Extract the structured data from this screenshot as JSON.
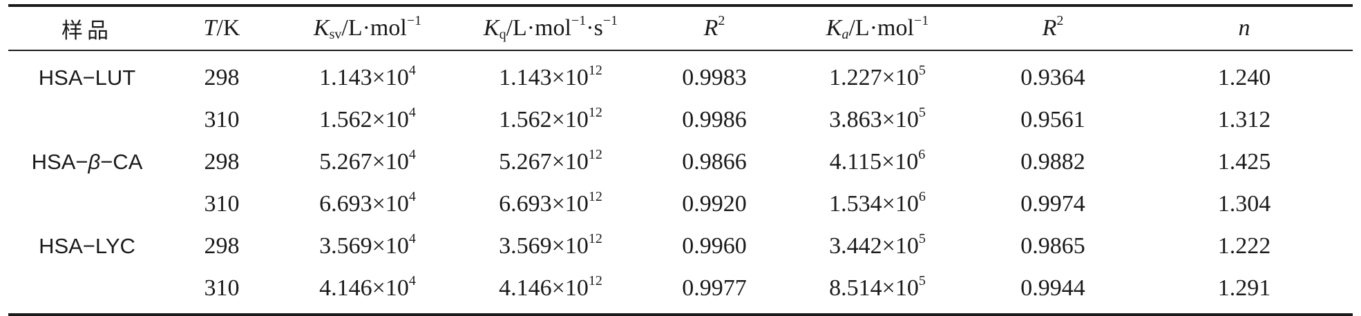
{
  "header": {
    "sample": "样品",
    "t_var": "T",
    "t_unit": "/K",
    "ksv_var": "K",
    "ksv_sub": "sv",
    "ksv_unit": "/L·mol",
    "ksv_exp": "−1",
    "kq_var": "K",
    "kq_sub": "q",
    "kq_unit1": "/L·mol",
    "kq_exp1": "−1",
    "kq_unit2": "·s",
    "kq_exp2": "−1",
    "r2a_var": "R",
    "r2a_exp": "2",
    "ka_var": "K",
    "ka_sub": "a",
    "ka_unit": "/L·mol",
    "ka_exp": "−1",
    "r2b_var": "R",
    "r2b_exp": "2",
    "n_var": "n"
  },
  "rows": [
    {
      "sample": "HSA−LUT",
      "sample_pre": "",
      "sample_it": "",
      "sample_post": "",
      "T": "298",
      "ksv_m": "1.143×10",
      "ksv_e": "4",
      "kq_m": "1.143×10",
      "kq_e": "12",
      "r2a": "0.9983",
      "ka_m": "1.227×10",
      "ka_e": "5",
      "r2b": "0.9364",
      "n": "1.240"
    },
    {
      "sample": "",
      "sample_pre": "",
      "sample_it": "",
      "sample_post": "",
      "T": "310",
      "ksv_m": "1.562×10",
      "ksv_e": "4",
      "kq_m": "1.562×10",
      "kq_e": "12",
      "r2a": "0.9986",
      "ka_m": "3.863×10",
      "ka_e": "5",
      "r2b": "0.9561",
      "n": "1.312"
    },
    {
      "sample": "",
      "sample_pre": "HSA−",
      "sample_it": "β",
      "sample_post": "−CA",
      "T": "298",
      "ksv_m": "5.267×10",
      "ksv_e": "4",
      "kq_m": "5.267×10",
      "kq_e": "12",
      "r2a": "0.9866",
      "ka_m": "4.115×10",
      "ka_e": "6",
      "r2b": "0.9882",
      "n": "1.425"
    },
    {
      "sample": "",
      "sample_pre": "",
      "sample_it": "",
      "sample_post": "",
      "T": "310",
      "ksv_m": "6.693×10",
      "ksv_e": "4",
      "kq_m": "6.693×10",
      "kq_e": "12",
      "r2a": "0.9920",
      "ka_m": "1.534×10",
      "ka_e": "6",
      "r2b": "0.9974",
      "n": "1.304"
    },
    {
      "sample": "HSA−LYC",
      "sample_pre": "",
      "sample_it": "",
      "sample_post": "",
      "T": "298",
      "ksv_m": "3.569×10",
      "ksv_e": "4",
      "kq_m": "3.569×10",
      "kq_e": "12",
      "r2a": "0.9960",
      "ka_m": "3.442×10",
      "ka_e": "5",
      "r2b": "0.9865",
      "n": "1.222"
    },
    {
      "sample": "",
      "sample_pre": "",
      "sample_it": "",
      "sample_post": "",
      "T": "310",
      "ksv_m": "4.146×10",
      "ksv_e": "4",
      "kq_m": "4.146×10",
      "kq_e": "12",
      "r2a": "0.9977",
      "ka_m": "8.514×10",
      "ka_e": "5",
      "r2b": "0.9944",
      "n": "1.291"
    }
  ]
}
